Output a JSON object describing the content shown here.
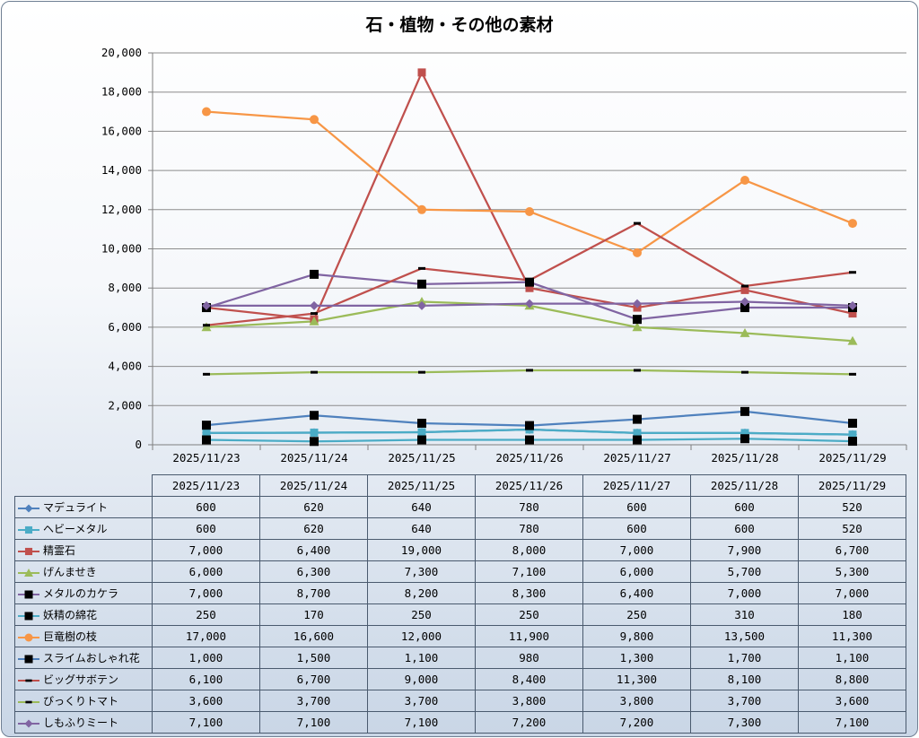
{
  "chart_data": {
    "type": "line",
    "title": "石・植物・その他の素材",
    "categories": [
      "2025/11/23",
      "2025/11/24",
      "2025/11/25",
      "2025/11/26",
      "2025/11/27",
      "2025/11/28",
      "2025/11/29"
    ],
    "ylim": [
      0,
      20000
    ],
    "y_ticks": [
      "0",
      "2,000",
      "4,000",
      "6,000",
      "8,000",
      "10,000",
      "12,000",
      "14,000",
      "16,000",
      "18,000",
      "20,000"
    ],
    "grid": true,
    "legend": "data-table",
    "series": [
      {
        "name": "マデュライト",
        "color": "#4f81bd",
        "marker": "diamond",
        "values": [
          600,
          620,
          640,
          780,
          600,
          600,
          520
        ],
        "labels": [
          "600",
          "620",
          "640",
          "780",
          "600",
          "600",
          "520"
        ]
      },
      {
        "name": "ヘビーメタル",
        "color": "#4bacc6",
        "marker": "square",
        "values": [
          600,
          620,
          640,
          780,
          600,
          600,
          520
        ],
        "labels": [
          "600",
          "620",
          "640",
          "780",
          "600",
          "600",
          "520"
        ]
      },
      {
        "name": "精霊石",
        "color": "#c0504d",
        "marker": "square",
        "values": [
          7000,
          6400,
          19000,
          8000,
          7000,
          7900,
          6700
        ],
        "labels": [
          "7,000",
          "6,400",
          "19,000",
          "8,000",
          "7,000",
          "7,900",
          "6,700"
        ]
      },
      {
        "name": "げんませき",
        "color": "#9bbb59",
        "marker": "triangle",
        "values": [
          6000,
          6300,
          7300,
          7100,
          6000,
          5700,
          5300
        ],
        "labels": [
          "6,000",
          "6,300",
          "7,300",
          "7,100",
          "6,000",
          "5,700",
          "5,300"
        ]
      },
      {
        "name": "メタルのカケラ",
        "color": "#8064a2",
        "marker": "black-square",
        "values": [
          7000,
          8700,
          8200,
          8300,
          6400,
          7000,
          7000
        ],
        "labels": [
          "7,000",
          "8,700",
          "8,200",
          "8,300",
          "6,400",
          "7,000",
          "7,000"
        ]
      },
      {
        "name": "妖精の綿花",
        "color": "#4bacc6",
        "marker": "black-square",
        "values": [
          250,
          170,
          250,
          250,
          250,
          310,
          180
        ],
        "labels": [
          "250",
          "170",
          "250",
          "250",
          "250",
          "310",
          "180"
        ]
      },
      {
        "name": "巨竜樹の枝",
        "color": "#f79646",
        "marker": "circle",
        "values": [
          17000,
          16600,
          12000,
          11900,
          9800,
          13500,
          11300
        ],
        "labels": [
          "17,000",
          "16,600",
          "12,000",
          "11,900",
          "9,800",
          "13,500",
          "11,300"
        ]
      },
      {
        "name": "スライムおしゃれ花",
        "color": "#4f81bd",
        "marker": "black-square",
        "values": [
          1000,
          1500,
          1100,
          980,
          1300,
          1700,
          1100
        ],
        "labels": [
          "1,000",
          "1,500",
          "1,100",
          "980",
          "1,300",
          "1,700",
          "1,100"
        ]
      },
      {
        "name": "ビッグサボテン",
        "color": "#c0504d",
        "marker": "dash",
        "values": [
          6100,
          6700,
          9000,
          8400,
          11300,
          8100,
          8800
        ],
        "labels": [
          "6,100",
          "6,700",
          "9,000",
          "8,400",
          "11,300",
          "8,100",
          "8,800"
        ]
      },
      {
        "name": "びっくりトマト",
        "color": "#9bbb59",
        "marker": "dash",
        "values": [
          3600,
          3700,
          3700,
          3800,
          3800,
          3700,
          3600
        ],
        "labels": [
          "3,600",
          "3,700",
          "3,700",
          "3,800",
          "3,800",
          "3,700",
          "3,600"
        ]
      },
      {
        "name": "しもふりミート",
        "color": "#8064a2",
        "marker": "diamond",
        "values": [
          7100,
          7100,
          7100,
          7200,
          7200,
          7300,
          7100
        ],
        "labels": [
          "7,100",
          "7,100",
          "7,100",
          "7,200",
          "7,200",
          "7,300",
          "7,100"
        ]
      }
    ]
  }
}
